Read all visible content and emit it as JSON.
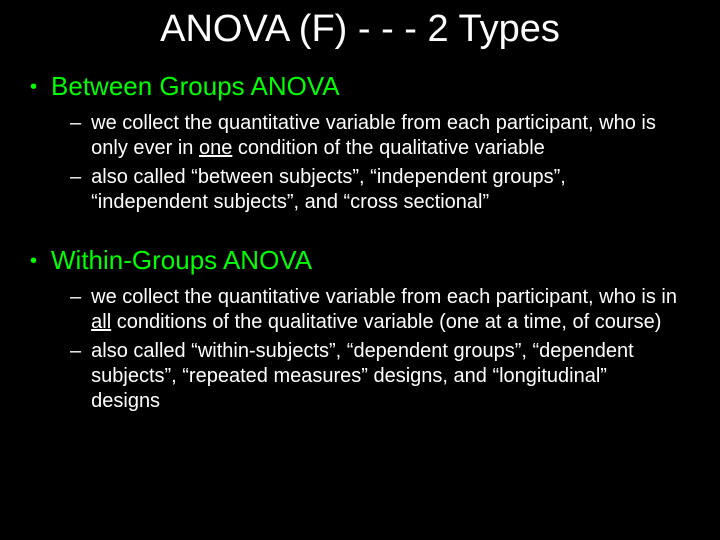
{
  "background_color": "#000000",
  "title_color": "#ffffff",
  "heading_color": "#00ff00",
  "body_color": "#ffffff",
  "title_fontsize": 38,
  "heading_fontsize": 26,
  "body_fontsize": 20,
  "title": "ANOVA (F) - - - 2 Types",
  "sections": [
    {
      "heading": "Between Groups ANOVA",
      "points": [
        {
          "pre": "we collect the quantitative variable from each participant, who is only ever in ",
          "underlined": "one",
          "post": " condition of the qualitative variable"
        },
        {
          "pre": "also called “between subjects”, “independent groups”, “independent subjects”, and “cross sectional”",
          "underlined": "",
          "post": ""
        }
      ]
    },
    {
      "heading": "Within-Groups ANOVA",
      "points": [
        {
          "pre": "we collect the quantitative variable from each participant, who is in ",
          "underlined": "all",
          "post": " conditions of the qualitative variable (one at a time, of course)"
        },
        {
          "pre": "also called “within-subjects”, “dependent groups”, “dependent subjects”, “repeated measures” designs, and “longitudinal” designs",
          "underlined": "",
          "post": ""
        }
      ]
    }
  ]
}
